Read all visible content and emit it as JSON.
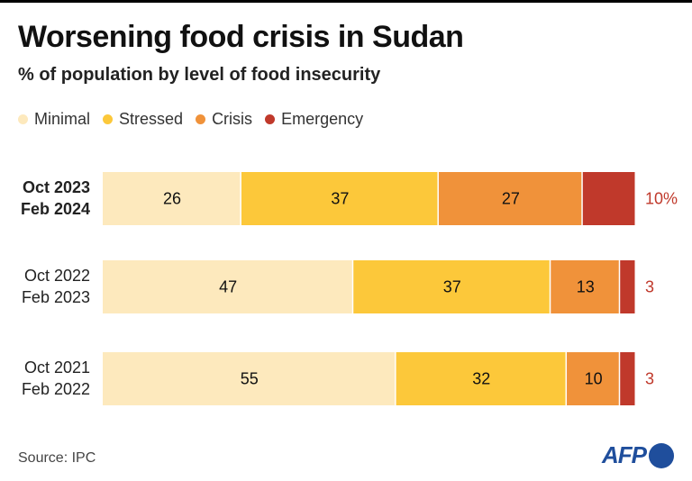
{
  "header": {
    "title": "Worsening food crisis in Sudan",
    "subtitle": "% of population by level of food insecurity"
  },
  "legend": [
    {
      "label": "Minimal",
      "color": "#fde9bd"
    },
    {
      "label": "Stressed",
      "color": "#fcc83a"
    },
    {
      "label": "Crisis",
      "color": "#f0923a"
    },
    {
      "label": "Emergency",
      "color": "#c0392b"
    }
  ],
  "chart_data": {
    "type": "bar",
    "orientation": "horizontal",
    "stacked": true,
    "categories": [
      [
        "Oct 2023",
        "Feb 2024"
      ],
      [
        "Oct 2022",
        "Feb 2023"
      ],
      [
        "Oct 2021",
        "Feb 2022"
      ]
    ],
    "series": [
      {
        "name": "Minimal",
        "color": "#fde9bd",
        "values": [
          26,
          47,
          55
        ]
      },
      {
        "name": "Stressed",
        "color": "#fcc83a",
        "values": [
          37,
          37,
          32
        ]
      },
      {
        "name": "Crisis",
        "color": "#f0923a",
        "values": [
          27,
          13,
          10
        ]
      },
      {
        "name": "Emergency",
        "color": "#c0392b",
        "values": [
          10,
          3,
          3
        ]
      }
    ],
    "data_labels": [
      [
        "26",
        "37",
        "27",
        "10%"
      ],
      [
        "47",
        "37",
        "13",
        "3"
      ],
      [
        "55",
        "32",
        "10",
        "3"
      ]
    ],
    "xlim": [
      0,
      100
    ],
    "grid": false,
    "legend_position": "top-left"
  },
  "footer": {
    "source": "Source: IPC",
    "logo": "AFP"
  }
}
